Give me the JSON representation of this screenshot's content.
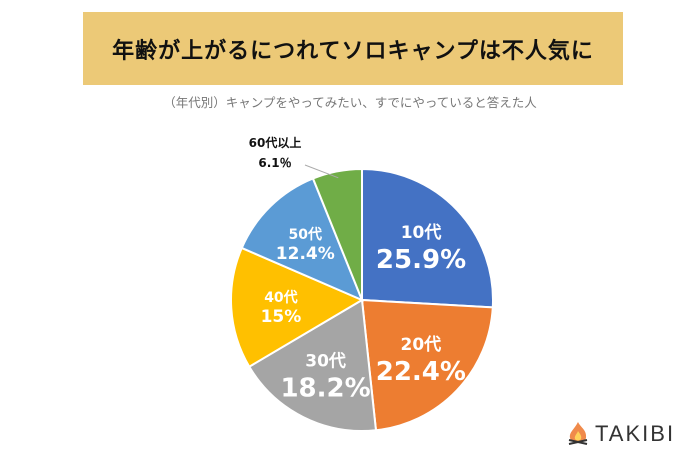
{
  "chart_data": {
    "type": "pie",
    "title": "年齢が上がるにつれてソロキャンプは不人気に",
    "subtitle": "（年代別）キャンプをやってみたい、すでにやっていると答えた人",
    "slices": [
      {
        "label": "10代",
        "value": 25.9,
        "value_label": "25.9%",
        "color": "#4472C4"
      },
      {
        "label": "20代",
        "value": 22.4,
        "value_label": "22.4%",
        "color": "#ED7D31"
      },
      {
        "label": "30代",
        "value": 18.2,
        "value_label": "18.2%",
        "color": "#A5A5A5"
      },
      {
        "label": "40代",
        "value": 15,
        "value_label": "15%",
        "color": "#FFC000"
      },
      {
        "label": "50代",
        "value": 12.4,
        "value_label": "12.4%",
        "color": "#5B9BD5"
      },
      {
        "label": "60代以上",
        "value": 6.1,
        "value_label": "6.1％",
        "color": "#70AD47"
      }
    ],
    "start": "top",
    "direction": "clockwise"
  },
  "logo": {
    "text": "TAKIBI"
  }
}
